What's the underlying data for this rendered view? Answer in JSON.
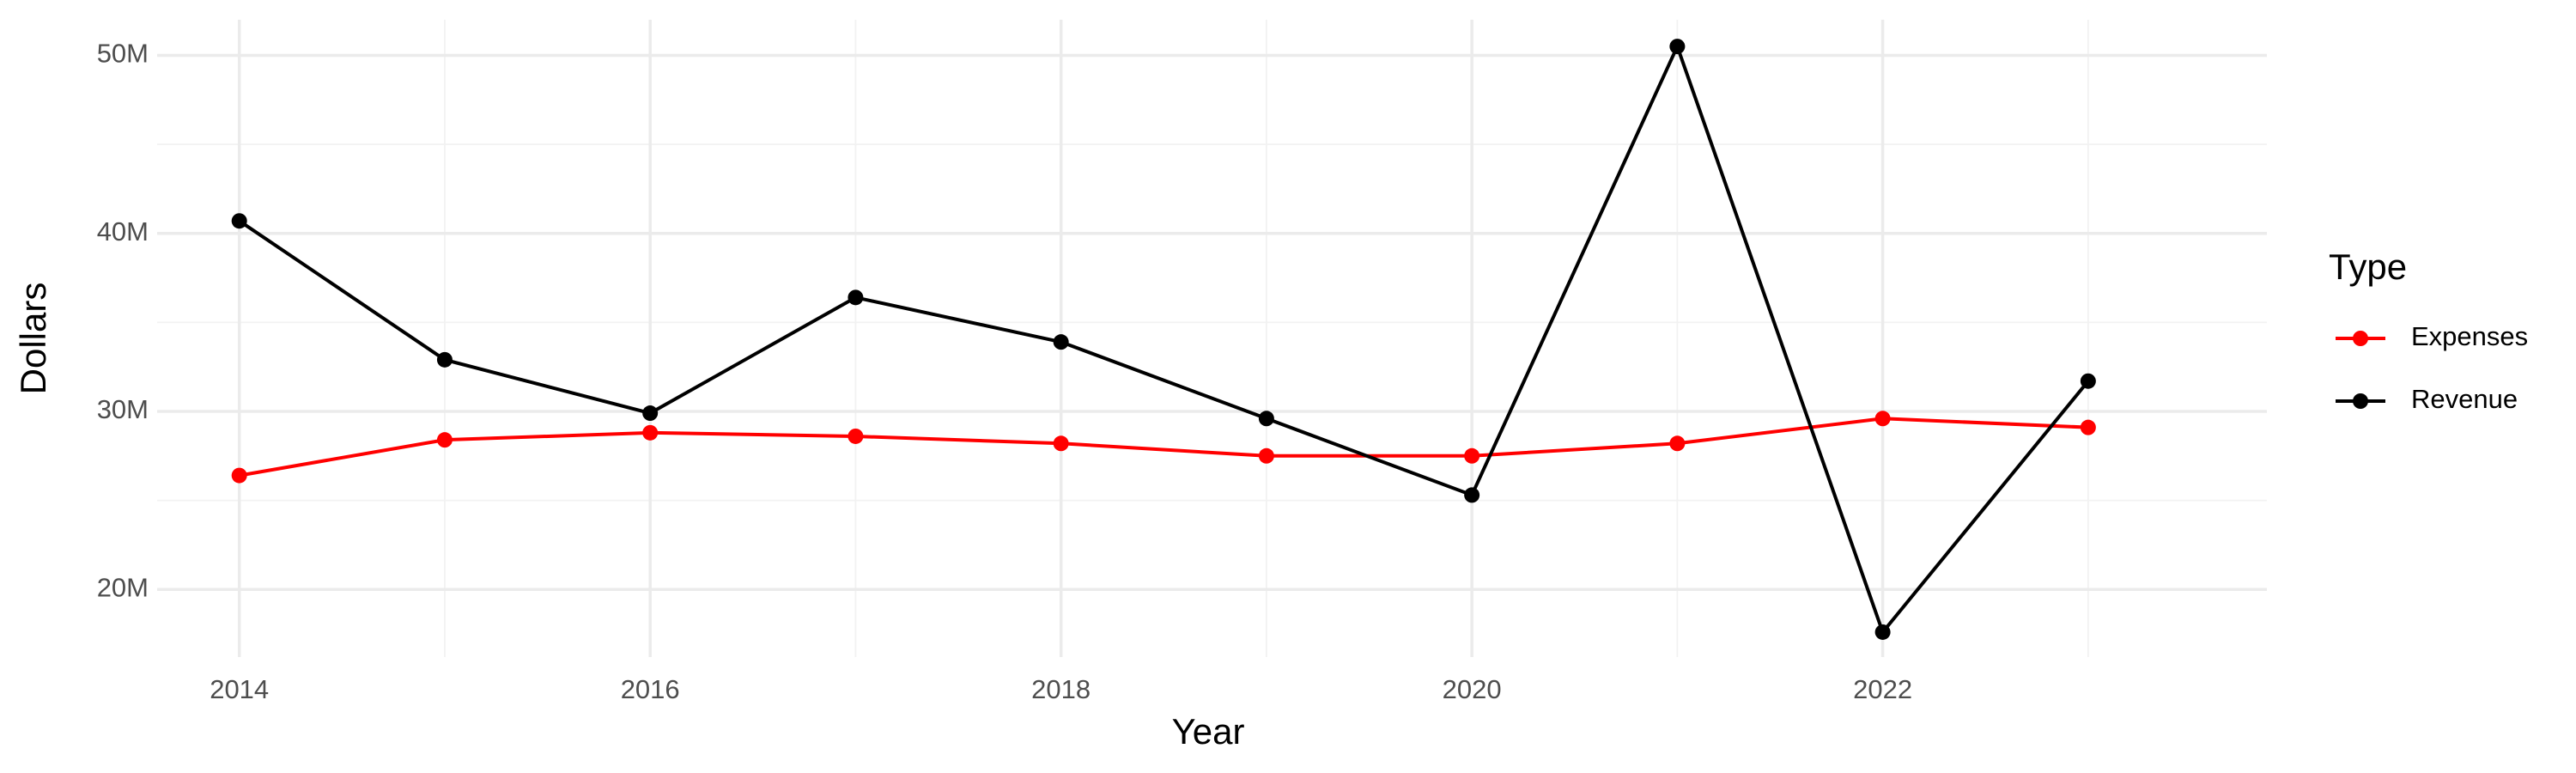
{
  "chart_data": {
    "type": "line",
    "x_label": "Year",
    "y_label": "Dollars",
    "legend_title": "Type",
    "legend_position": "right",
    "x": [
      2014,
      2015,
      2016,
      2017,
      2018,
      2019,
      2020,
      2021,
      2022,
      2023
    ],
    "series": [
      {
        "name": "Expenses",
        "color": "#ff0000",
        "values": [
          26400000,
          28400000,
          28800000,
          28600000,
          28200000,
          27500000,
          27500000,
          28200000,
          29600000,
          29100000
        ]
      },
      {
        "name": "Revenue",
        "color": "#000000",
        "values": [
          40700000,
          32900000,
          29900000,
          36400000,
          33900000,
          29600000,
          25300000,
          50500000,
          17600000,
          31700000
        ]
      }
    ],
    "xlim": [
      2013.6,
      2023.87
    ],
    "xticks": [
      2014,
      2016,
      2018,
      2020,
      2022
    ],
    "ylim": [
      16200000,
      52000000
    ],
    "yticks": [
      {
        "value": 20000000,
        "label": "20M"
      },
      {
        "value": 30000000,
        "label": "30M"
      },
      {
        "value": 40000000,
        "label": "40M"
      },
      {
        "value": 50000000,
        "label": "50M"
      }
    ],
    "grid": true
  }
}
